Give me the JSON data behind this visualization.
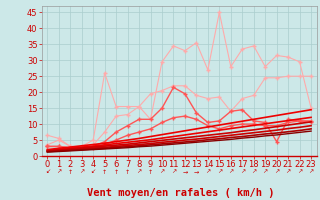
{
  "title": "",
  "xlabel": "Vent moyen/en rafales ( km/h )",
  "ylabel": "",
  "xlim": [
    -0.5,
    23.5
  ],
  "ylim": [
    0,
    47
  ],
  "yticks": [
    0,
    5,
    10,
    15,
    20,
    25,
    30,
    35,
    40,
    45
  ],
  "xticks": [
    0,
    1,
    2,
    3,
    4,
    5,
    6,
    7,
    8,
    9,
    10,
    11,
    12,
    13,
    14,
    15,
    16,
    17,
    18,
    19,
    20,
    21,
    22,
    23
  ],
  "background_color": "#cce8e8",
  "grid_color": "#aacece",
  "lines": [
    {
      "comment": "lightest pink - top erratic line",
      "color": "#ffaaaa",
      "lw": 0.8,
      "marker": "+",
      "markersize": 3.5,
      "y": [
        6.5,
        5.5,
        3.0,
        3.0,
        5.0,
        26.0,
        15.5,
        15.5,
        15.5,
        11.5,
        29.5,
        34.5,
        33.0,
        35.5,
        27.0,
        45.0,
        28.0,
        33.5,
        34.5,
        28.0,
        31.5,
        31.0,
        29.5,
        15.0
      ]
    },
    {
      "comment": "light pink - second erratic line",
      "color": "#ffaaaa",
      "lw": 0.8,
      "marker": "+",
      "markersize": 3.5,
      "y": [
        3.5,
        5.0,
        3.0,
        2.5,
        3.5,
        7.5,
        12.5,
        13.0,
        15.5,
        19.5,
        20.5,
        22.0,
        22.0,
        19.0,
        18.0,
        18.5,
        14.0,
        18.0,
        19.0,
        24.5,
        24.5,
        25.0,
        25.0,
        25.0
      ]
    },
    {
      "comment": "medium red - third line with bumps",
      "color": "#ff5555",
      "lw": 1.0,
      "marker": "+",
      "markersize": 3.5,
      "y": [
        3.0,
        3.0,
        2.5,
        2.5,
        3.0,
        4.5,
        7.5,
        9.5,
        11.5,
        11.5,
        15.0,
        21.5,
        19.5,
        13.5,
        10.5,
        11.0,
        14.0,
        14.5,
        11.0,
        10.5,
        4.5,
        11.5,
        11.0,
        10.5
      ]
    },
    {
      "comment": "medium red - fourth line",
      "color": "#ff5555",
      "lw": 1.0,
      "marker": "+",
      "markersize": 3.5,
      "y": [
        3.0,
        3.0,
        2.5,
        2.5,
        2.5,
        3.5,
        5.0,
        6.5,
        7.5,
        8.5,
        10.5,
        12.0,
        12.5,
        11.5,
        9.5,
        8.5,
        9.5,
        10.0,
        10.0,
        9.5,
        9.5,
        10.5,
        11.0,
        11.0
      ]
    },
    {
      "comment": "bright red straight diagonal 1",
      "color": "#ee0000",
      "lw": 1.2,
      "marker": null,
      "markersize": 0,
      "y": [
        2.0,
        2.4,
        2.8,
        3.2,
        3.6,
        4.0,
        4.5,
        5.0,
        5.5,
        6.1,
        6.7,
        7.3,
        7.9,
        8.5,
        9.1,
        9.7,
        10.3,
        10.9,
        11.5,
        12.1,
        12.7,
        13.3,
        13.9,
        14.5
      ]
    },
    {
      "comment": "bright red straight diagonal 2",
      "color": "#ee0000",
      "lw": 1.2,
      "marker": null,
      "markersize": 0,
      "y": [
        1.8,
        2.1,
        2.5,
        2.8,
        3.1,
        3.5,
        3.9,
        4.3,
        4.7,
        5.1,
        5.6,
        6.1,
        6.6,
        7.1,
        7.6,
        8.1,
        8.6,
        9.1,
        9.6,
        10.1,
        10.6,
        11.1,
        11.6,
        12.1
      ]
    },
    {
      "comment": "dark red straight diagonal 3",
      "color": "#cc0000",
      "lw": 1.2,
      "marker": null,
      "markersize": 0,
      "y": [
        1.6,
        1.9,
        2.2,
        2.5,
        2.8,
        3.1,
        3.4,
        3.7,
        4.1,
        4.5,
        4.9,
        5.3,
        5.7,
        6.1,
        6.5,
        6.9,
        7.3,
        7.8,
        8.2,
        8.7,
        9.2,
        9.7,
        10.2,
        10.7
      ]
    },
    {
      "comment": "dark red straight diagonal 4",
      "color": "#cc0000",
      "lw": 1.2,
      "marker": null,
      "markersize": 0,
      "y": [
        1.5,
        1.7,
        2.0,
        2.2,
        2.5,
        2.7,
        3.0,
        3.3,
        3.6,
        3.9,
        4.3,
        4.6,
        5.0,
        5.3,
        5.7,
        6.1,
        6.5,
        6.9,
        7.3,
        7.7,
        8.1,
        8.6,
        9.0,
        9.5
      ]
    },
    {
      "comment": "darker red straight diagonal 5",
      "color": "#aa0000",
      "lw": 1.2,
      "marker": null,
      "markersize": 0,
      "y": [
        1.4,
        1.6,
        1.8,
        2.0,
        2.2,
        2.4,
        2.7,
        2.9,
        3.2,
        3.5,
        3.8,
        4.1,
        4.4,
        4.7,
        5.1,
        5.4,
        5.8,
        6.1,
        6.5,
        6.9,
        7.2,
        7.6,
        8.0,
        8.5
      ]
    },
    {
      "comment": "darkest red straight diagonal 6",
      "color": "#880000",
      "lw": 1.0,
      "marker": null,
      "markersize": 0,
      "y": [
        1.2,
        1.4,
        1.6,
        1.8,
        2.0,
        2.2,
        2.4,
        2.6,
        2.9,
        3.1,
        3.4,
        3.7,
        4.0,
        4.3,
        4.6,
        4.9,
        5.2,
        5.6,
        5.9,
        6.3,
        6.6,
        7.0,
        7.4,
        7.8
      ]
    }
  ],
  "wind_arrows": [
    "↙",
    "↗",
    "↑",
    "↗",
    "↙",
    "↑",
    "↑",
    "↑",
    "↗",
    "↑",
    "↗",
    "↗",
    "→",
    "→",
    "↗",
    "↗",
    "↗",
    "↗",
    "↗",
    "↗",
    "↗",
    "↗",
    "↗",
    "↗"
  ],
  "xlabel_color": "#cc0000",
  "xlabel_fontsize": 7.5,
  "tick_color": "#cc0000",
  "tick_fontsize": 6.0
}
